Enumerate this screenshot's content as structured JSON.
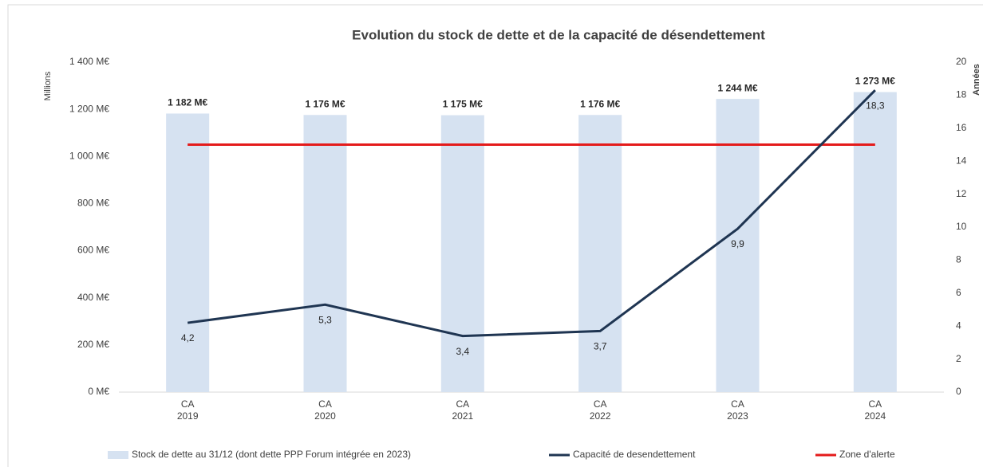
{
  "chart_data": {
    "type": "bar_line",
    "title": "Evolution du stock de dette et de la capacité de désendettement",
    "y_label": "Millions",
    "y2_label": "Années",
    "categories": [
      "CA 2019",
      "CA 2020",
      "CA 2021",
      "CA 2022",
      "CA 2023",
      "CA 2024"
    ],
    "series": [
      {
        "name": "Stock de dette au 31/12 (dont dette PPP Forum intégrée en 2023)",
        "kind": "bar",
        "color": "#d6e2f1",
        "values": [
          1182,
          1176,
          1175,
          1176,
          1244,
          1273
        ],
        "value_labels": [
          "1 182 M€",
          "1 176 M€",
          "1 175 M€",
          "1 176 M€",
          "1 244 M€",
          "1 273 M€"
        ]
      },
      {
        "name": "Capacité de desendettement",
        "kind": "line",
        "axis": "y2",
        "color": "#1f3552",
        "values": [
          4.2,
          5.3,
          3.4,
          3.7,
          9.9,
          18.3
        ],
        "value_labels": [
          "4,2",
          "5,3",
          "3,4",
          "3,7",
          "9,9",
          "18,3"
        ]
      },
      {
        "name": "Zone d'alerte",
        "kind": "line",
        "axis": "y2",
        "color": "#e41b1b",
        "values": [
          15,
          15,
          15,
          15,
          15,
          15
        ]
      }
    ],
    "ylim": [
      0,
      1400
    ],
    "yticks": [
      {
        "value": 0,
        "label": "0 M€"
      },
      {
        "value": 200,
        "label": "200 M€"
      },
      {
        "value": 400,
        "label": "400 M€"
      },
      {
        "value": 600,
        "label": "600 M€"
      },
      {
        "value": 800,
        "label": "800 M€"
      },
      {
        "value": 1000,
        "label": "1 000 M€"
      },
      {
        "value": 1200,
        "label": "1 200 M€"
      },
      {
        "value": 1400,
        "label": "1 400 M€"
      }
    ],
    "y2lim": [
      0,
      20
    ],
    "y2ticks": [
      0,
      2,
      4,
      6,
      8,
      10,
      12,
      14,
      16,
      18,
      20
    ],
    "legend": "bottom"
  }
}
